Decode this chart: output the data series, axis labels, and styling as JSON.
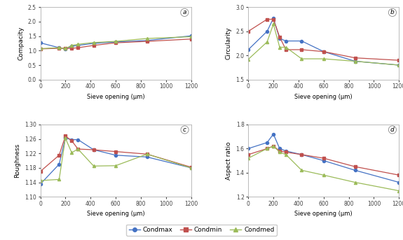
{
  "sieve": [
    0,
    150,
    200,
    250,
    300,
    425,
    600,
    850,
    1200
  ],
  "compacity": {
    "condmax": [
      1.27,
      1.1,
      1.05,
      1.15,
      1.18,
      1.25,
      1.3,
      1.35,
      1.51
    ],
    "condmin": [
      1.06,
      1.08,
      1.08,
      1.08,
      1.1,
      1.18,
      1.27,
      1.32,
      1.4
    ],
    "condmed": [
      1.07,
      1.1,
      1.07,
      1.18,
      1.22,
      1.28,
      1.32,
      1.42,
      1.48
    ]
  },
  "circularity": {
    "condmax": [
      2.12,
      2.5,
      2.77,
      2.35,
      2.3,
      2.3,
      2.08,
      1.88,
      1.8
    ],
    "condmin": [
      2.5,
      2.75,
      2.75,
      2.38,
      2.12,
      2.12,
      2.08,
      1.95,
      1.9
    ],
    "condmed": [
      1.92,
      2.28,
      2.65,
      2.17,
      2.17,
      1.93,
      1.93,
      1.88,
      1.8
    ]
  },
  "roughness": {
    "condmax": [
      1.135,
      1.19,
      1.262,
      1.258,
      1.258,
      1.23,
      1.215,
      1.21,
      1.18
    ],
    "condmin": [
      1.17,
      1.215,
      1.268,
      1.255,
      1.232,
      1.23,
      1.225,
      1.218,
      1.182
    ],
    "condmed": [
      1.145,
      1.148,
      1.262,
      1.222,
      1.232,
      1.185,
      1.186,
      1.218,
      1.18
    ]
  },
  "aspect_ratio": {
    "condmax": [
      1.6,
      1.65,
      1.72,
      1.6,
      1.58,
      1.55,
      1.5,
      1.42,
      1.32
    ],
    "condmin": [
      1.55,
      1.6,
      1.62,
      1.58,
      1.57,
      1.55,
      1.52,
      1.45,
      1.38
    ],
    "condmed": [
      1.52,
      1.6,
      1.62,
      1.57,
      1.55,
      1.42,
      1.38,
      1.32,
      1.25
    ]
  },
  "colors": {
    "condmax": "#4472C4",
    "condmin": "#C0504D",
    "condmed": "#9BBB59"
  },
  "markers": {
    "condmax": "o",
    "condmin": "s",
    "condmed": "^"
  },
  "ylims": {
    "compacity": [
      0.0,
      2.5
    ],
    "circularity": [
      1.5,
      3.0
    ],
    "roughness": [
      1.1,
      1.3
    ],
    "aspect_ratio": [
      1.2,
      1.8
    ]
  },
  "yticks": {
    "compacity": [
      0.0,
      0.5,
      1.0,
      1.5,
      2.0,
      2.5
    ],
    "circularity": [
      1.5,
      2.0,
      2.5,
      3.0
    ],
    "roughness": [
      1.1,
      1.14,
      1.18,
      1.22,
      1.26,
      1.3
    ],
    "aspect_ratio": [
      1.2,
      1.4,
      1.6,
      1.8
    ]
  },
  "xlim": [
    0,
    1200
  ],
  "xticks": [
    0,
    200,
    400,
    600,
    800,
    1000,
    1200
  ],
  "subplot_labels": [
    "a",
    "b",
    "c",
    "d"
  ],
  "ylabels": [
    "Compacity",
    "Circularity",
    "Roughness",
    "Aspect ratio"
  ],
  "xlabel": "Sieve opening (μm)",
  "legend_labels": [
    "Condmax",
    "Condmin",
    "Condmed"
  ],
  "legend_keys": [
    "condmax",
    "condmin",
    "condmed"
  ]
}
